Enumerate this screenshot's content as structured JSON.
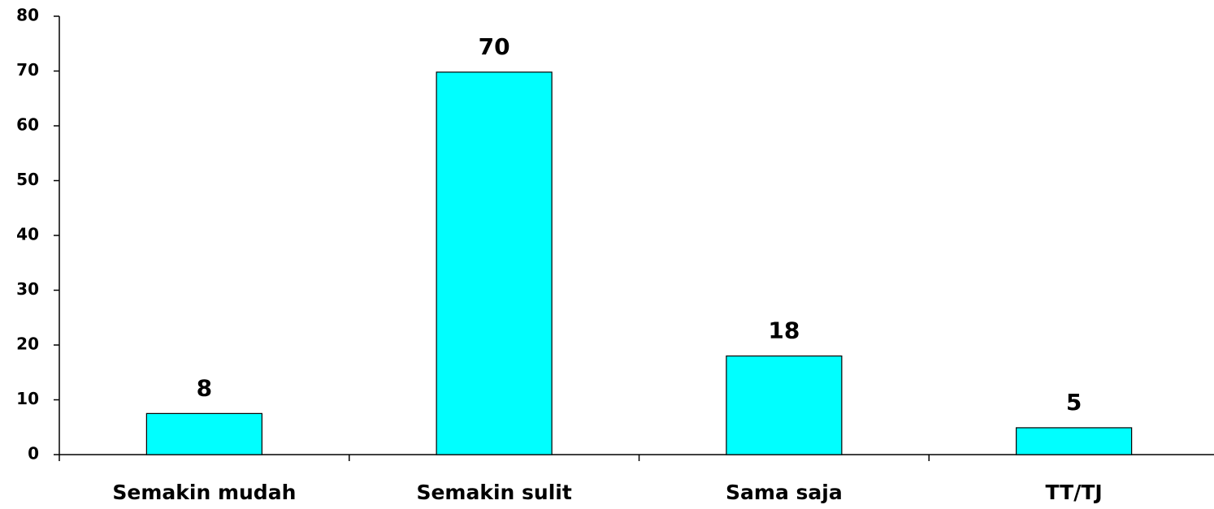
{
  "chart_data": {
    "type": "bar",
    "categories": [
      "Semakin mudah",
      "Semakin sulit",
      "Sama saja",
      "TT/TJ"
    ],
    "values": [
      7.5,
      69.8,
      18,
      4.9
    ],
    "value_labels": [
      "8",
      "70",
      "18",
      "5"
    ],
    "color": "#00ffff",
    "ylim": [
      0,
      80
    ],
    "yticks": [
      0,
      10,
      20,
      30,
      40,
      50,
      60,
      70,
      80
    ]
  }
}
